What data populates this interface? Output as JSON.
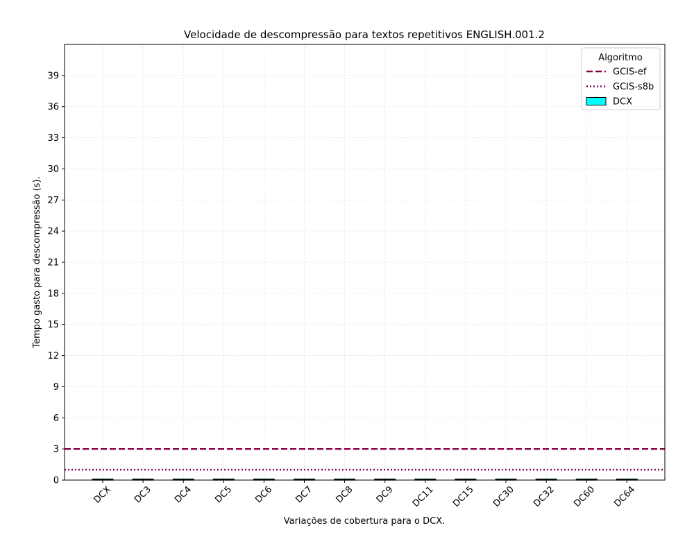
{
  "chart_data": {
    "type": "box",
    "title": "Velocidade de descompressão para textos repetitivos ENGLISH.001.2",
    "xlabel": "Variações de cobertura para o DCX.",
    "ylabel": "Tempo gasto para descompressão (s).",
    "ylim": [
      0,
      42
    ],
    "yticks": [
      0,
      3,
      6,
      9,
      12,
      15,
      18,
      21,
      24,
      27,
      30,
      33,
      36,
      39
    ],
    "grid": true,
    "categories": [
      "DCX",
      "DC3",
      "DC4",
      "DC5",
      "DC6",
      "DC7",
      "DC8",
      "DC9",
      "DC11",
      "DC15",
      "DC30",
      "DC32",
      "DC60",
      "DC64"
    ],
    "series": [
      {
        "name": "DCX",
        "kind": "box",
        "color": "#00ffff",
        "values": [
          0.05,
          0.05,
          0.05,
          0.05,
          0.05,
          0.05,
          0.05,
          0.05,
          0.05,
          0.05,
          0.05,
          0.05,
          0.05,
          0.05
        ]
      }
    ],
    "reference_lines": [
      {
        "name": "GCIS-ef",
        "value": 3.0,
        "color": "#8b0045",
        "style": "dashed"
      },
      {
        "name": "GCIS-s8b",
        "value": 1.0,
        "color": "#800060",
        "style": "dotted"
      }
    ],
    "legend": {
      "title": "Algoritmo",
      "placement": "top-right",
      "entries": [
        {
          "label": "GCIS-ef",
          "kind": "line",
          "color": "#8b0045",
          "style": "dashed"
        },
        {
          "label": "GCIS-s8b",
          "kind": "line",
          "color": "#800060",
          "style": "dotted"
        },
        {
          "label": "DCX",
          "kind": "box",
          "color": "#00ffff"
        }
      ]
    }
  }
}
